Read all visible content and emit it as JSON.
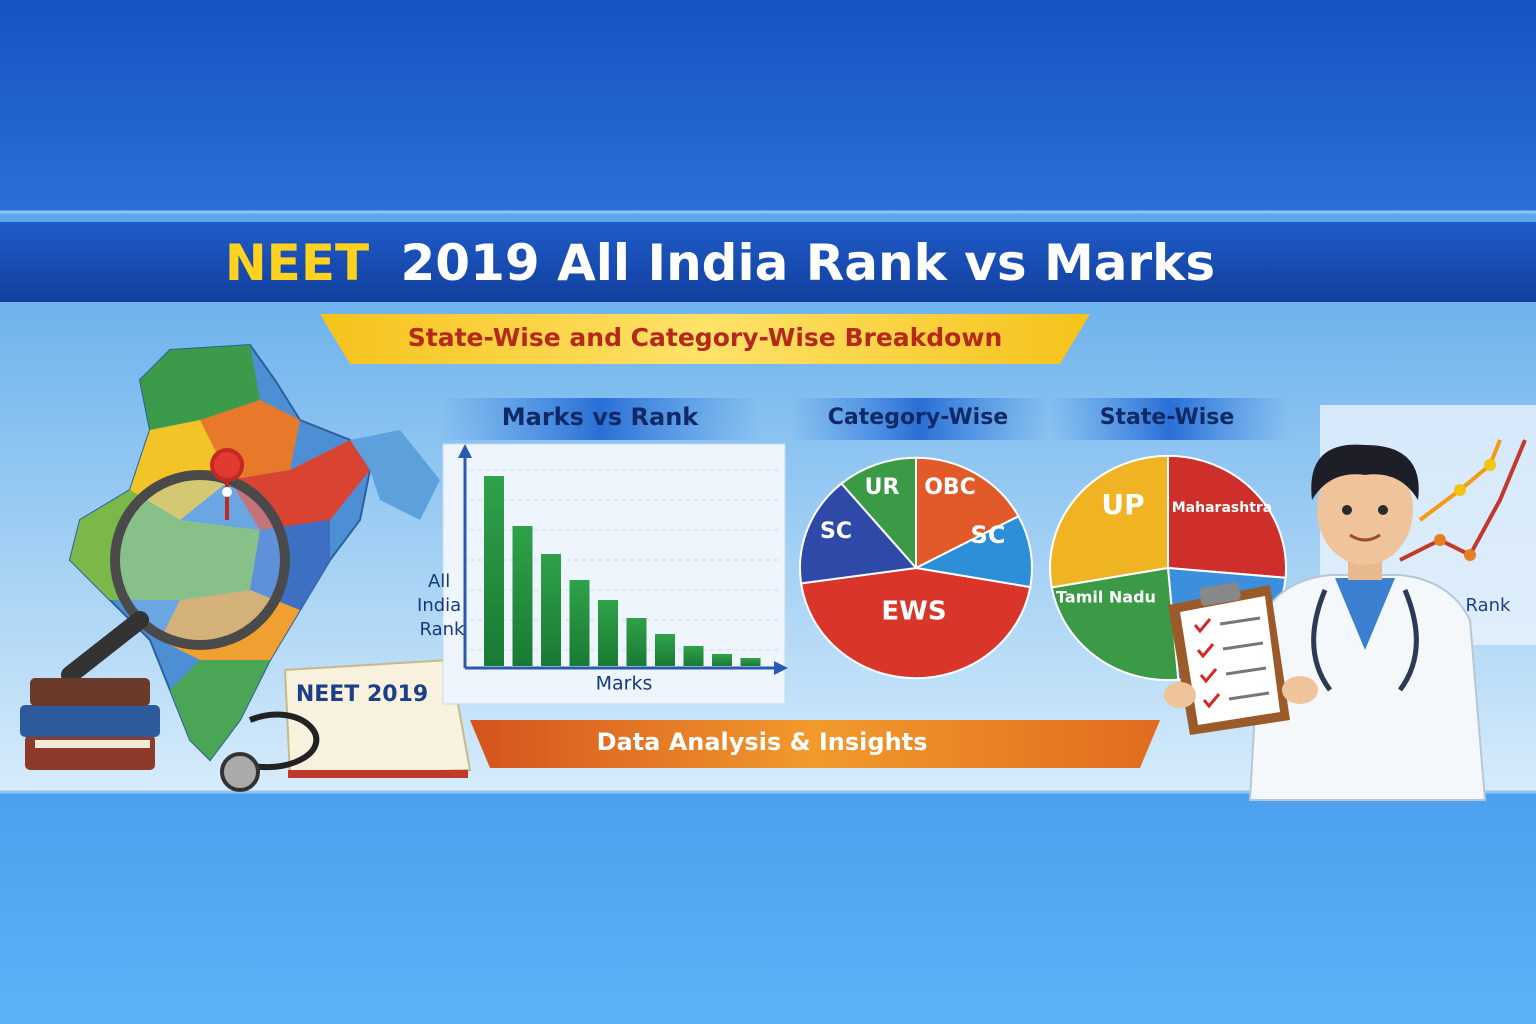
{
  "banner": {
    "title_highlight": "NEET",
    "title_rest": "2019 All India Rank vs Marks",
    "subtitle": "State-Wise and Category-Wise Breakdown",
    "panels": [
      {
        "title": "Marks vs Rank",
        "y_axis_label": [
          "All",
          "India",
          "Rank"
        ],
        "x_axis_label": "Marks"
      },
      {
        "title": "Category-Wise",
        "slice_labels": [
          "UR",
          "OBC",
          "SC",
          "SC",
          "EWS"
        ]
      },
      {
        "title": "State-Wise",
        "slice_labels": [
          "UP",
          "Maharashtra",
          "Tamil Nadu"
        ]
      }
    ],
    "book_label": "NEET 2019",
    "footer_ribbon": "Data Analysis & Insights",
    "trend_label": "Rank"
  }
}
